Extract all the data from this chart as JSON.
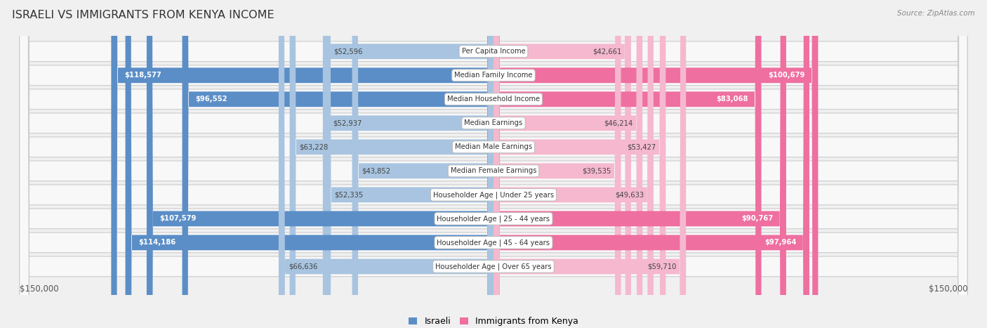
{
  "title": "ISRAELI VS IMMIGRANTS FROM KENYA INCOME",
  "source": "Source: ZipAtlas.com",
  "categories": [
    "Per Capita Income",
    "Median Family Income",
    "Median Household Income",
    "Median Earnings",
    "Median Male Earnings",
    "Median Female Earnings",
    "Householder Age | Under 25 years",
    "Householder Age | 25 - 44 years",
    "Householder Age | 45 - 64 years",
    "Householder Age | Over 65 years"
  ],
  "israeli_values": [
    52596,
    118577,
    96552,
    52937,
    63228,
    43852,
    52335,
    107579,
    114186,
    66636
  ],
  "kenya_values": [
    42661,
    100679,
    83068,
    46214,
    53427,
    39535,
    49633,
    90767,
    97964,
    59710
  ],
  "israeli_labels": [
    "$52,596",
    "$118,577",
    "$96,552",
    "$52,937",
    "$63,228",
    "$43,852",
    "$52,335",
    "$107,579",
    "$114,186",
    "$66,636"
  ],
  "kenya_labels": [
    "$42,661",
    "$100,679",
    "$83,068",
    "$46,214",
    "$53,427",
    "$39,535",
    "$49,633",
    "$90,767",
    "$97,964",
    "$59,710"
  ],
  "israeli_color_dark": "#5b8ec7",
  "israeli_color_light": "#a8c4e0",
  "kenya_color_dark": "#ee6fa0",
  "kenya_color_light": "#f5b8cf",
  "max_value": 150000,
  "background_color": "#f0f0f0",
  "legend_israeli": "Israeli",
  "legend_kenya": "Immigrants from Kenya",
  "israeli_dark_threshold": 80000,
  "kenya_dark_threshold": 80000
}
